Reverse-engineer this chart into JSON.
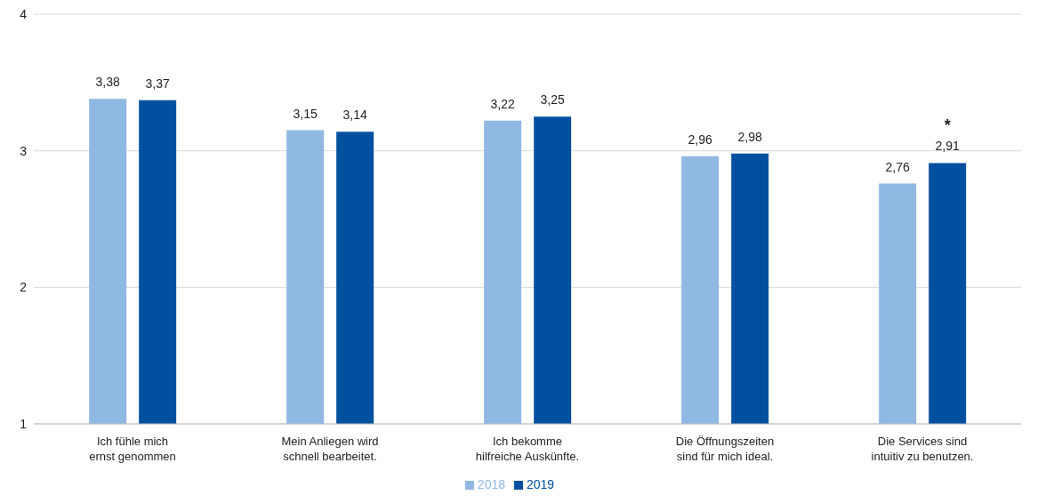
{
  "chart_data": {
    "type": "bar",
    "categories": [
      "Ich fühle mich ernst genommen",
      "Mein Anliegen wird schnell bearbeitet.",
      "Ich bekomme hilfreiche Auskünfte.",
      "Die Öffnungszeiten sind für mich ideal.",
      "Die Services sind intuitiv zu benutzen."
    ],
    "series": [
      {
        "name": "2018",
        "color": "#8fb8e3",
        "values": [
          3.38,
          3.15,
          3.22,
          2.96,
          2.76
        ],
        "value_labels": [
          "3,38",
          "3,15",
          "3,22",
          "2,96",
          "2,76"
        ]
      },
      {
        "name": "2019",
        "color": "#0050a0",
        "values": [
          3.37,
          3.14,
          3.25,
          2.98,
          2.91
        ],
        "value_labels": [
          "3,37",
          "3,14",
          "3,25",
          "2,98",
          "2,91"
        ]
      }
    ],
    "annotations": [
      "*"
    ],
    "ylim": [
      1,
      4
    ],
    "yticks": [
      1,
      2,
      3,
      4
    ],
    "grid": "y",
    "legend": "bottom"
  }
}
